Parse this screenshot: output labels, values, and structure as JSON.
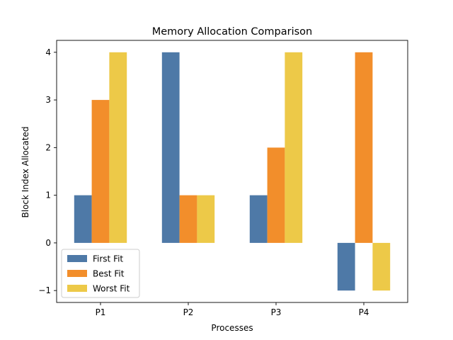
{
  "chart_data": {
    "type": "bar",
    "title": "Memory Allocation Comparison",
    "xlabel": "Processes",
    "ylabel": "Block Index Allocated",
    "categories": [
      "P1",
      "P2",
      "P3",
      "P4"
    ],
    "series": [
      {
        "name": "First Fit",
        "values": [
          1,
          4,
          1,
          -1
        ],
        "color": "#4e79a7"
      },
      {
        "name": "Best Fit",
        "values": [
          3,
          1,
          2,
          4
        ],
        "color": "#f28e2b"
      },
      {
        "name": "Worst Fit",
        "values": [
          4,
          1,
          4,
          -1
        ],
        "color": "#edc948"
      }
    ],
    "yticks": [
      -1,
      0,
      1,
      2,
      3,
      4
    ],
    "ytick_labels": [
      "−1",
      "0",
      "1",
      "2",
      "3",
      "4"
    ],
    "ylim": [
      -1.25,
      4.25
    ],
    "grid": false,
    "legend_placement": "lower-left"
  }
}
